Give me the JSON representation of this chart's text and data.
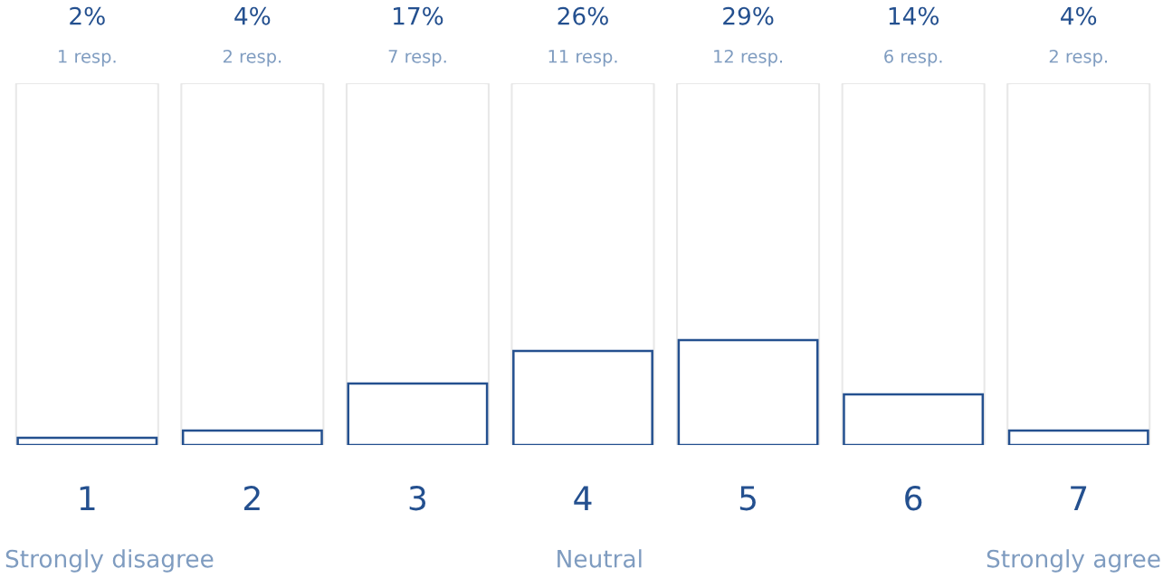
{
  "chart_data": {
    "type": "bar",
    "categories": [
      "1",
      "2",
      "3",
      "4",
      "5",
      "6",
      "7"
    ],
    "values": [
      2,
      4,
      17,
      26,
      29,
      14,
      4
    ],
    "value_labels": [
      "2%",
      "4%",
      "17%",
      "26%",
      "29%",
      "14%",
      "4%"
    ],
    "color": "#24508f",
    "ylim": [
      0,
      100
    ],
    "tick_labels": "x",
    "grid": false,
    "legend": false,
    "annotations": [
      "1 resp.",
      "2 resp.",
      "7 resp.",
      "11 resp.",
      "12 resp.",
      "6 resp.",
      "2 resp.",
      "Strongly disagree",
      "Neutral",
      "Strongly agree"
    ]
  }
}
